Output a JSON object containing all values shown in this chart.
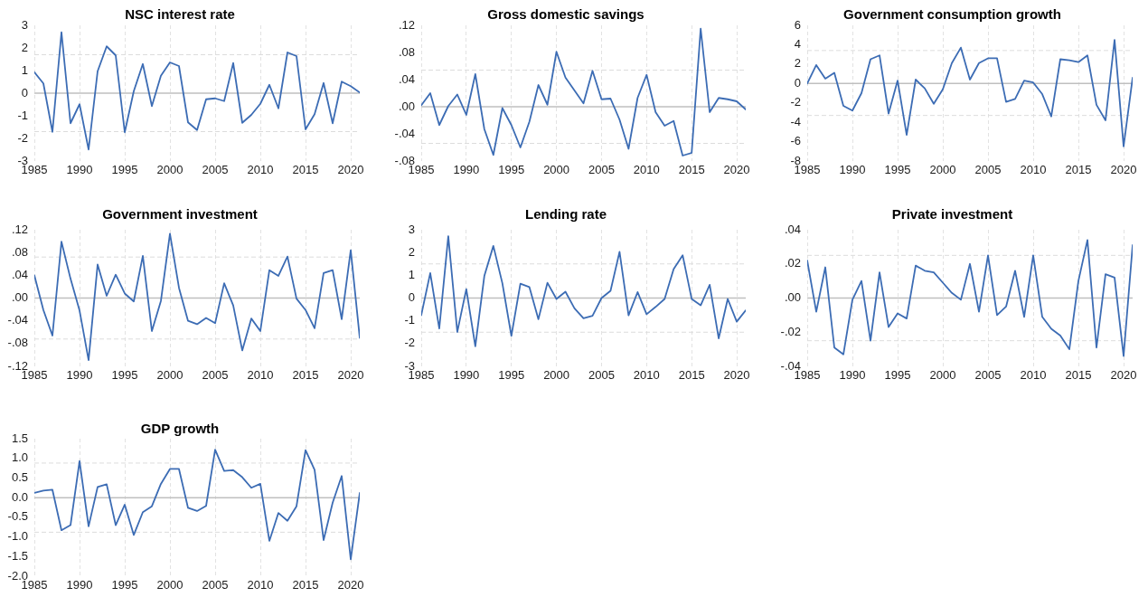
{
  "chart_data": [
    {
      "type": "line",
      "title": "NSC interest rate",
      "x": [
        1985,
        1986,
        1987,
        1988,
        1989,
        1990,
        1991,
        1992,
        1993,
        1994,
        1995,
        1996,
        1997,
        1998,
        1999,
        2000,
        2001,
        2002,
        2003,
        2004,
        2005,
        2006,
        2007,
        2008,
        2009,
        2010,
        2011,
        2012,
        2013,
        2014,
        2015,
        2016,
        2017,
        2018,
        2019,
        2020,
        2021
      ],
      "values": [
        0.93,
        0.43,
        -1.71,
        2.69,
        -1.33,
        -0.49,
        -2.49,
        0.97,
        2.07,
        1.67,
        -1.73,
        0.09,
        1.29,
        -0.57,
        0.77,
        1.36,
        1.2,
        -1.29,
        -1.63,
        -0.27,
        -0.23,
        -0.35,
        1.33,
        -1.31,
        -0.96,
        -0.47,
        0.37,
        -0.67,
        1.8,
        1.64,
        -1.6,
        -0.93,
        0.45,
        -1.33,
        0.51,
        0.31,
        0.03
      ],
      "color": "#3c6cb4",
      "marker": "none",
      "xlim": [
        1985,
        2021
      ],
      "xticks": [
        1985,
        1990,
        1995,
        2000,
        2005,
        2010,
        2015,
        2020
      ],
      "ylim": [
        -3,
        3
      ],
      "yticks": [
        -3,
        -2,
        -1,
        0,
        1,
        2,
        3
      ],
      "grid": "x",
      "ref_lines": [
        {
          "axis": "y",
          "value": 0,
          "color": "#bfbfbf",
          "line_style": "solid"
        },
        {
          "axis": "y",
          "value": 1.7,
          "color": "#dcdcdc",
          "line_style": "dashed"
        },
        {
          "axis": "y",
          "value": -1.7,
          "color": "#dcdcdc",
          "line_style": "dashed"
        }
      ]
    },
    {
      "type": "line",
      "title": "Gross domestic savings",
      "x": [
        1985,
        1986,
        1987,
        1988,
        1989,
        1990,
        1991,
        1992,
        1993,
        1994,
        1995,
        1996,
        1997,
        1998,
        1999,
        2000,
        2001,
        2002,
        2003,
        2004,
        2005,
        2006,
        2007,
        2008,
        2009,
        2010,
        2011,
        2012,
        2013,
        2014,
        2015,
        2016,
        2017,
        2018,
        2019,
        2020,
        2021
      ],
      "values": [
        0.002,
        0.02,
        -0.027,
        0.001,
        0.018,
        -0.012,
        0.048,
        -0.033,
        -0.071,
        -0.002,
        -0.027,
        -0.06,
        -0.022,
        0.032,
        0.003,
        0.081,
        0.043,
        0.024,
        0.005,
        0.053,
        0.011,
        0.012,
        -0.019,
        -0.062,
        0.013,
        0.047,
        -0.008,
        -0.028,
        -0.021,
        -0.072,
        -0.068,
        0.115,
        -0.008,
        0.013,
        0.011,
        0.008,
        -0.004
      ],
      "color": "#3c6cb4",
      "marker": "none",
      "xlim": [
        1985,
        2021
      ],
      "xticks": [
        1985,
        1990,
        1995,
        2000,
        2005,
        2010,
        2015,
        2020
      ],
      "ylim": [
        -0.08,
        0.12
      ],
      "yticks": [
        {
          "value": -0.08,
          "label": "-.08"
        },
        {
          "value": -0.04,
          "label": "-.04"
        },
        {
          "value": 0,
          "label": ".00"
        },
        {
          "value": 0.04,
          "label": ".04"
        },
        {
          "value": 0.08,
          "label": ".08"
        },
        {
          "value": 0.12,
          "label": ".12"
        }
      ],
      "grid": "x",
      "ref_lines": [
        {
          "axis": "y",
          "value": 0,
          "color": "#bfbfbf",
          "line_style": "solid"
        },
        {
          "axis": "y",
          "value": 0.054,
          "color": "#dcdcdc",
          "line_style": "dashed"
        },
        {
          "axis": "y",
          "value": -0.054,
          "color": "#dcdcdc",
          "line_style": "dashed"
        }
      ]
    },
    {
      "type": "line",
      "title": "Government consumption growth",
      "x": [
        1985,
        1986,
        1987,
        1988,
        1989,
        1990,
        1991,
        1992,
        1993,
        1994,
        1995,
        1996,
        1997,
        1998,
        1999,
        2000,
        2001,
        2002,
        2003,
        2004,
        2005,
        2006,
        2007,
        2008,
        2009,
        2010,
        2011,
        2012,
        2013,
        2014,
        2015,
        2016,
        2017,
        2018,
        2019,
        2020,
        2021
      ],
      "values": [
        0,
        1.9,
        0.5,
        1.1,
        -2.3,
        -2.8,
        -1.0,
        2.5,
        2.9,
        -3.1,
        0.3,
        -5.3,
        0.4,
        -0.5,
        -2.1,
        -0.6,
        2.1,
        3.7,
        0.4,
        2.1,
        2.6,
        2.6,
        -1.9,
        -1.6,
        0.3,
        0.1,
        -1.1,
        -3.4,
        2.5,
        2.4,
        2.2,
        2.9,
        -2.2,
        -3.8,
        4.5,
        -6.5,
        0.6
      ],
      "color": "#3c6cb4",
      "marker": "none",
      "xlim": [
        1985,
        2021
      ],
      "xticks": [
        1985,
        1990,
        1995,
        2000,
        2005,
        2010,
        2015,
        2020
      ],
      "ylim": [
        -8,
        6
      ],
      "yticks": [
        -8,
        -6,
        -4,
        -2,
        0,
        2,
        4,
        6
      ],
      "grid": "x",
      "ref_lines": [
        {
          "axis": "y",
          "value": 0,
          "color": "#bfbfbf",
          "line_style": "solid"
        },
        {
          "axis": "y",
          "value": 3.4,
          "color": "#dcdcdc",
          "line_style": "dashed"
        },
        {
          "axis": "y",
          "value": -3.3,
          "color": "#dcdcdc",
          "line_style": "dashed"
        }
      ]
    },
    {
      "type": "line",
      "title": "Government investment",
      "x": [
        1985,
        1986,
        1987,
        1988,
        1989,
        1990,
        1991,
        1992,
        1993,
        1994,
        1995,
        1996,
        1997,
        1998,
        1999,
        2000,
        2001,
        2002,
        2003,
        2004,
        2005,
        2006,
        2007,
        2008,
        2009,
        2010,
        2011,
        2012,
        2013,
        2014,
        2015,
        2016,
        2017,
        2018,
        2019,
        2020,
        2021
      ],
      "values": [
        0.04,
        -0.021,
        -0.066,
        0.099,
        0.034,
        -0.022,
        -0.109,
        0.059,
        0.004,
        0.041,
        0.008,
        -0.006,
        0.074,
        -0.058,
        -0.005,
        0.113,
        0.018,
        -0.04,
        -0.046,
        -0.035,
        -0.044,
        0.026,
        -0.013,
        -0.092,
        -0.036,
        -0.058,
        0.049,
        0.039,
        0.073,
        -0.001,
        -0.021,
        -0.053,
        0.044,
        0.049,
        -0.037,
        0.084,
        -0.07
      ],
      "color": "#3c6cb4",
      "marker": "none",
      "xlim": [
        1985,
        2021
      ],
      "xticks": [
        1985,
        1990,
        1995,
        2000,
        2005,
        2010,
        2015,
        2020
      ],
      "ylim": [
        -0.12,
        0.12
      ],
      "yticks": [
        {
          "value": -0.12,
          "label": "-.12"
        },
        {
          "value": -0.08,
          "label": "-.08"
        },
        {
          "value": -0.04,
          "label": "-.04"
        },
        {
          "value": 0,
          "label": ".00"
        },
        {
          "value": 0.04,
          "label": ".04"
        },
        {
          "value": 0.08,
          "label": ".08"
        },
        {
          "value": 0.12,
          "label": ".12"
        }
      ],
      "grid": "x",
      "ref_lines": [
        {
          "axis": "y",
          "value": 0,
          "color": "#bfbfbf",
          "line_style": "solid"
        },
        {
          "axis": "y",
          "value": 0.072,
          "color": "#dcdcdc",
          "line_style": "dashed"
        },
        {
          "axis": "y",
          "value": -0.072,
          "color": "#dcdcdc",
          "line_style": "dashed"
        }
      ]
    },
    {
      "type": "line",
      "title": "Lending rate",
      "x": [
        1985,
        1986,
        1987,
        1988,
        1989,
        1990,
        1991,
        1992,
        1993,
        1994,
        1995,
        1996,
        1997,
        1998,
        1999,
        2000,
        2001,
        2002,
        2003,
        2004,
        2005,
        2006,
        2007,
        2008,
        2009,
        2010,
        2011,
        2012,
        2013,
        2014,
        2015,
        2016,
        2017,
        2018,
        2019,
        2020,
        2021
      ],
      "values": [
        -0.76,
        1.1,
        -1.34,
        2.72,
        -1.49,
        0.39,
        -2.12,
        0.97,
        2.29,
        0.65,
        -1.66,
        0.63,
        0.48,
        -0.93,
        0.67,
        -0.04,
        0.28,
        -0.45,
        -0.89,
        -0.78,
        0,
        0.32,
        2.03,
        -0.76,
        0.26,
        -0.71,
        -0.39,
        -0.04,
        1.27,
        1.88,
        -0.04,
        -0.32,
        0.58,
        -1.77,
        -0.04,
        -1.04,
        -0.54
      ],
      "color": "#3c6cb4",
      "marker": "none",
      "xlim": [
        1985,
        2021
      ],
      "xticks": [
        1985,
        1990,
        1995,
        2000,
        2005,
        2010,
        2015,
        2020
      ],
      "ylim": [
        -3,
        3
      ],
      "yticks": [
        -3,
        -2,
        -1,
        0,
        1,
        2,
        3
      ],
      "grid": "x",
      "ref_lines": [
        {
          "axis": "y",
          "value": 0,
          "color": "#bfbfbf",
          "line_style": "solid"
        },
        {
          "axis": "y",
          "value": 1.5,
          "color": "#dcdcdc",
          "line_style": "dashed"
        },
        {
          "axis": "y",
          "value": -1.5,
          "color": "#dcdcdc",
          "line_style": "dashed"
        }
      ]
    },
    {
      "type": "line",
      "title": "Private investment",
      "x": [
        1985,
        1986,
        1987,
        1988,
        1989,
        1990,
        1991,
        1992,
        1993,
        1994,
        1995,
        1996,
        1997,
        1998,
        1999,
        2000,
        2001,
        2002,
        2003,
        2004,
        2005,
        2006,
        2007,
        2008,
        2009,
        2010,
        2011,
        2012,
        2013,
        2014,
        2015,
        2016,
        2017,
        2018,
        2019,
        2020,
        2021
      ],
      "values": [
        0.022,
        -0.008,
        0.018,
        -0.029,
        -0.033,
        -0.001,
        0.01,
        -0.025,
        0.015,
        -0.017,
        -0.009,
        -0.012,
        0.019,
        0.016,
        0.015,
        0.009,
        0.003,
        -0.001,
        0.02,
        -0.008,
        0.025,
        -0.01,
        -0.005,
        0.016,
        -0.011,
        0.025,
        -0.011,
        -0.018,
        -0.022,
        -0.03,
        0.01,
        0.034,
        -0.029,
        0.014,
        0.012,
        -0.034,
        0.031
      ],
      "color": "#3c6cb4",
      "marker": "none",
      "xlim": [
        1985,
        2021
      ],
      "xticks": [
        1985,
        1990,
        1995,
        2000,
        2005,
        2010,
        2015,
        2020
      ],
      "ylim": [
        -0.04,
        0.04
      ],
      "yticks": [
        {
          "value": -0.04,
          "label": "-.04"
        },
        {
          "value": -0.02,
          "label": "-.02"
        },
        {
          "value": 0,
          "label": ".00"
        },
        {
          "value": 0.02,
          "label": ".02"
        },
        {
          "value": 0.04,
          "label": ".04"
        }
      ],
      "grid": "x",
      "ref_lines": [
        {
          "axis": "y",
          "value": 0,
          "color": "#bfbfbf",
          "line_style": "solid"
        },
        {
          "axis": "y",
          "value": 0.025,
          "color": "#dcdcdc",
          "line_style": "dashed"
        },
        {
          "axis": "y",
          "value": -0.025,
          "color": "#dcdcdc",
          "line_style": "dashed"
        }
      ]
    },
    {
      "type": "line",
      "title": "GDP growth",
      "x": [
        1985,
        1986,
        1987,
        1988,
        1989,
        1990,
        1991,
        1992,
        1993,
        1994,
        1995,
        1996,
        1997,
        1998,
        1999,
        2000,
        2001,
        2002,
        2003,
        2004,
        2005,
        2006,
        2007,
        2008,
        2009,
        2010,
        2011,
        2012,
        2013,
        2014,
        2015,
        2016,
        2017,
        2018,
        2019,
        2020,
        2021
      ],
      "values": [
        0.12,
        0.18,
        0.2,
        -0.83,
        -0.7,
        0.93,
        -0.73,
        0.27,
        0.34,
        -0.7,
        -0.18,
        -0.95,
        -0.37,
        -0.22,
        0.35,
        0.73,
        0.73,
        -0.26,
        -0.34,
        -0.21,
        1.22,
        0.68,
        0.7,
        0.52,
        0.25,
        0.35,
        -1.1,
        -0.39,
        -0.59,
        -0.22,
        1.21,
        0.71,
        -1.08,
        -0.13,
        0.55,
        -1.57,
        0.12
      ],
      "color": "#3c6cb4",
      "marker": "none",
      "xlim": [
        1985,
        2021
      ],
      "xticks": [
        1985,
        1990,
        1995,
        2000,
        2005,
        2010,
        2015,
        2020
      ],
      "ylim": [
        -2,
        1.5
      ],
      "yticks": [
        {
          "value": -2,
          "label": "-2.0"
        },
        -1.5,
        {
          "value": -1,
          "label": "-1.0"
        },
        -0.5,
        {
          "value": 0,
          "label": "0.0"
        },
        0.5,
        {
          "value": 1,
          "label": "1.0"
        },
        1.5
      ],
      "grid": "x",
      "ref_lines": [
        {
          "axis": "y",
          "value": 0,
          "color": "#bfbfbf",
          "line_style": "solid"
        },
        {
          "axis": "y",
          "value": 0.88,
          "color": "#dcdcdc",
          "line_style": "dashed"
        },
        {
          "axis": "y",
          "value": -0.88,
          "color": "#dcdcdc",
          "line_style": "dashed"
        }
      ]
    }
  ]
}
